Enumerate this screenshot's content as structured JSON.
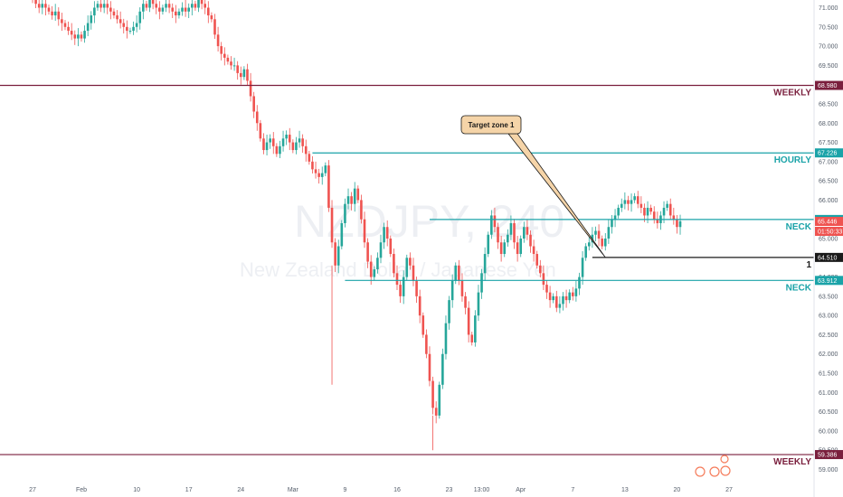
{
  "watermark": {
    "symbol": "NZDJPY, 240",
    "name": "New Zealand Dollar / Japanese Yen"
  },
  "chart_data": {
    "type": "candlestick",
    "ylim": [
      58.8,
      71.2
    ],
    "yticks": [
      "71.000",
      "70.500",
      "70.000",
      "69.500",
      "69.000",
      "68.500",
      "68.000",
      "67.500",
      "67.000",
      "66.500",
      "66.000",
      "65.500",
      "65.000",
      "64.500",
      "64.000",
      "63.500",
      "63.000",
      "62.500",
      "62.000",
      "61.500",
      "61.000",
      "60.500",
      "60.000",
      "59.500",
      "59.000"
    ],
    "xticks": [
      {
        "label": "27",
        "idx": 0
      },
      {
        "label": "Feb",
        "idx": 15
      },
      {
        "label": "10",
        "idx": 32
      },
      {
        "label": "17",
        "idx": 48
      },
      {
        "label": "24",
        "idx": 64
      },
      {
        "label": "Mar",
        "idx": 80
      },
      {
        "label": "9",
        "idx": 96
      },
      {
        "label": "16",
        "idx": 112
      },
      {
        "label": "23",
        "idx": 128
      },
      {
        "label": "13:00",
        "idx": 138
      },
      {
        "label": "Apr",
        "idx": 150
      },
      {
        "label": "7",
        "idx": 166
      },
      {
        "label": "13",
        "idx": 182
      },
      {
        "label": "20",
        "idx": 198
      },
      {
        "label": "27",
        "idx": 214
      }
    ],
    "x_last_index": 225,
    "closes": [
      71.2,
      71.1,
      71.0,
      71.1,
      71.0,
      70.9,
      70.8,
      70.9,
      70.7,
      70.6,
      70.5,
      70.4,
      70.3,
      70.2,
      70.3,
      70.2,
      70.4,
      70.6,
      70.8,
      71.0,
      71.1,
      71.0,
      71.1,
      71.0,
      70.9,
      70.8,
      70.7,
      70.6,
      70.5,
      70.4,
      70.4,
      70.5,
      70.6,
      70.9,
      71.1,
      71.0,
      71.2,
      71.1,
      71.0,
      70.9,
      71.0,
      71.1,
      71.0,
      70.9,
      70.8,
      70.9,
      71.0,
      70.9,
      71.0,
      71.1,
      71.0,
      71.2,
      71.1,
      71.0,
      70.8,
      70.7,
      70.3,
      70.0,
      69.8,
      69.7,
      69.6,
      69.5,
      69.5,
      69.3,
      69.2,
      69.4,
      69.1,
      68.7,
      68.3,
      68.0,
      67.6,
      67.3,
      67.5,
      67.6,
      67.4,
      67.2,
      67.4,
      67.6,
      67.7,
      67.5,
      67.3,
      67.5,
      67.6,
      67.4,
      67.2,
      67.0,
      66.8,
      66.7,
      66.6,
      66.7,
      66.9,
      65.8,
      64.9,
      64.3,
      64.8,
      65.4,
      65.9,
      66.1,
      65.9,
      66.3,
      66.0,
      65.5,
      64.9,
      64.4,
      64.0,
      64.2,
      64.5,
      64.9,
      65.3,
      65.0,
      64.6,
      64.1,
      63.8,
      63.5,
      64.0,
      64.5,
      64.3,
      63.9,
      63.5,
      63.0,
      62.5,
      62.0,
      61.3,
      60.6,
      60.4,
      61.2,
      62.0,
      62.8,
      63.4,
      63.9,
      64.3,
      63.9,
      63.5,
      63.2,
      62.5,
      62.3,
      63.0,
      63.6,
      64.1,
      64.6,
      65.1,
      65.6,
      65.3,
      64.9,
      64.6,
      64.9,
      65.1,
      65.4,
      64.9,
      64.6,
      65.0,
      65.3,
      65.1,
      64.8,
      64.6,
      64.3,
      64.1,
      63.8,
      63.6,
      63.4,
      63.5,
      63.2,
      63.3,
      63.5,
      63.4,
      63.6,
      63.5,
      63.7,
      64.0,
      64.5,
      64.8,
      64.9,
      65.1,
      65.2,
      65.0,
      64.8,
      65.0,
      65.3,
      65.5,
      65.6,
      65.8,
      65.9,
      66.0,
      65.9,
      66.0,
      66.1,
      65.9,
      65.8,
      65.6,
      65.8,
      65.7,
      65.5,
      65.4,
      65.6,
      65.8,
      65.9,
      65.6,
      65.5,
      65.3,
      65.45
    ],
    "hlines": [
      {
        "name": "weekly_top",
        "price": 68.98,
        "price_label": "68.980",
        "label": "WEEKLY",
        "color": "#7a1f3d",
        "x_from_idx": -1
      },
      {
        "name": "hourly",
        "price": 67.226,
        "price_label": "67.226",
        "label": "HOURLY",
        "color": "#1aa3a8",
        "x_from_idx": 86
      },
      {
        "name": "neck_upper",
        "price": 65.496,
        "price_label": "65.496",
        "label": "NECK",
        "color": "#1aa3a8",
        "x_from_idx": 122
      },
      {
        "name": "level_1",
        "price": 64.51,
        "price_label": "64.510",
        "label": "1",
        "color": "#1a1a1a",
        "x_from_idx": 172
      },
      {
        "name": "neck_lower",
        "price": 63.912,
        "price_label": "63.912",
        "label": "NECK",
        "color": "#1aa3a8",
        "x_from_idx": 96
      },
      {
        "name": "weekly_bottom",
        "price": 59.386,
        "price_label": "59.386",
        "label": "WEEKLY",
        "color": "#7a1f3d",
        "x_from_idx": -1
      }
    ],
    "current_price": {
      "price_label": "65.446",
      "countdown": "01:50:33",
      "color": "#ef5350"
    },
    "callout": {
      "text": "Target zone 1",
      "target_idx": 176,
      "target_price": 64.51
    },
    "colors": {
      "up": "#26a69a",
      "down": "#ef5350"
    }
  }
}
